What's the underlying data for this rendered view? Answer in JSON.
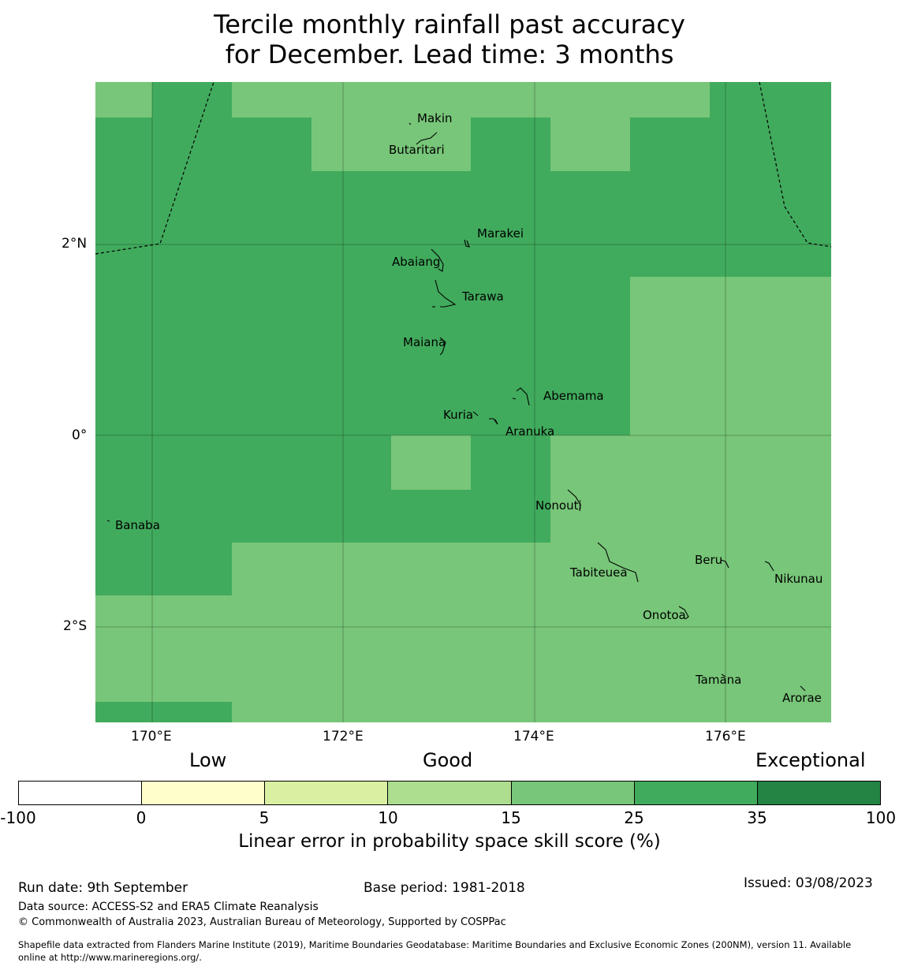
{
  "title_line1": "Tercile monthly rainfall past accuracy",
  "title_line2": "for December. Lead time: 3 months",
  "map": {
    "lon_ticks": [
      "170°E",
      "172°E",
      "174°E",
      "176°E"
    ],
    "lat_ticks": [
      "2°N",
      "0°",
      "2°S"
    ],
    "islands": [
      "Makin",
      "Butaritari",
      "Marakei",
      "Abaiang",
      "Tarawa",
      "Maiana",
      "Abemama",
      "Kuria",
      "Aranuka",
      "Nonouti",
      "Banaba",
      "Tabiteuea",
      "Beru",
      "Nikunau",
      "Onotoa",
      "Tamana",
      "Arorae"
    ],
    "colors": {
      "band_15_25": "#78c679",
      "band_25_35": "#41ab5d",
      "band_35_100": "#238443"
    }
  },
  "legend": {
    "categories": [
      "Low",
      "Good",
      "Exceptional"
    ],
    "ticks": [
      "-100",
      "0",
      "5",
      "10",
      "15",
      "25",
      "35",
      "100"
    ],
    "colors": [
      "#ffffff",
      "#ffffcc",
      "#d9f0a3",
      "#addd8e",
      "#78c679",
      "#41ab5d",
      "#238443"
    ],
    "label": "Linear error in probability space skill score (%)"
  },
  "footer": {
    "run_date": "Run date: 9th September",
    "base_period": "Base period: 1981-2018",
    "issued": "Issued: 03/08/2023",
    "data_source": "Data source: ACCESS-S2 and ERA5 Climate Reanalysis",
    "copyright": "© Commonwealth of Australia 2023, Australian Bureau of Meteorology, Supported by COSPPac",
    "shapefile_1": "Shapefile data extracted from Flanders Marine Institute (2019), Maritime Boundaries Geodatabase: Maritime Boundaries and Exclusive Economic Zones (200NM), version 11. Available",
    "shapefile_2": "online at http://www.marineregions.org/."
  }
}
